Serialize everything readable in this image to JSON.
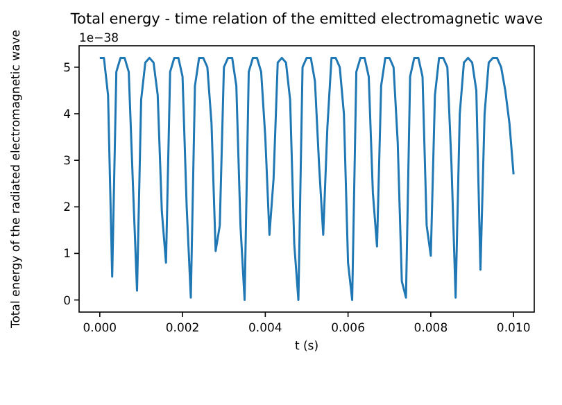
{
  "chart_data": {
    "type": "line",
    "title": "Total energy - time relation of the emitted electromagnetic wave",
    "xlabel": "t (s)",
    "ylabel": "Total energy of the radiated electromagnetic wave",
    "annotations": [
      "1e−38"
    ],
    "xlim": [
      -0.0005,
      0.0105
    ],
    "ylim": [
      -0.26,
      5.46
    ],
    "xticks": [
      {
        "value": 0,
        "label": "0.000"
      },
      {
        "value": 0.002,
        "label": "0.002"
      },
      {
        "value": 0.004,
        "label": "0.004"
      },
      {
        "value": 0.006,
        "label": "0.006"
      },
      {
        "value": 0.008,
        "label": "0.008"
      },
      {
        "value": 0.01,
        "label": "0.010"
      }
    ],
    "yticks": [
      0,
      1,
      2,
      3,
      4,
      5
    ],
    "series": [
      {
        "color": "#1f77b4",
        "x": [
          0,
          0.0001,
          0.0002,
          0.0003,
          0.0004,
          0.0005,
          0.0006,
          0.0007,
          0.0008,
          0.0009,
          0.001,
          0.0011,
          0.0012,
          0.0013,
          0.0014,
          0.0015,
          0.0016,
          0.0017,
          0.0018,
          0.0019,
          0.002,
          0.0021,
          0.0022,
          0.0023,
          0.0024,
          0.0025,
          0.0026,
          0.0027,
          0.0028,
          0.0029,
          0.003,
          0.0031,
          0.0032,
          0.0033,
          0.0034,
          0.0035,
          0.0036,
          0.0037,
          0.0038,
          0.0039,
          0.004,
          0.0041,
          0.0042,
          0.0043,
          0.0044,
          0.0045,
          0.0046,
          0.0047,
          0.0048,
          0.0049,
          0.005,
          0.0051,
          0.0052,
          0.0053,
          0.0054,
          0.0055,
          0.0056,
          0.0057,
          0.0058,
          0.0059,
          0.006,
          0.0061,
          0.0062,
          0.0063,
          0.0064,
          0.0065,
          0.0066,
          0.0067,
          0.0068,
          0.0069,
          0.007,
          0.0071,
          0.0072,
          0.0073,
          0.0074,
          0.0075,
          0.0076,
          0.0077,
          0.0078,
          0.0079,
          0.008,
          0.0081,
          0.0082,
          0.0083,
          0.0084,
          0.0085,
          0.0086,
          0.0087,
          0.0088,
          0.0089,
          0.009,
          0.0091,
          0.0092,
          0.0093,
          0.0094,
          0.0095,
          0.0096,
          0.0097,
          0.0098,
          0.0099,
          0.01
        ],
        "values": [
          5.2,
          5.2,
          4.4,
          0.5,
          4.9,
          5.2,
          5.2,
          4.9,
          2.5,
          0.2,
          4.3,
          5.1,
          5.2,
          5.1,
          4.4,
          1.9,
          0.8,
          4.9,
          5.2,
          5.2,
          4.8,
          2.0,
          0.05,
          4.6,
          5.2,
          5.2,
          5.0,
          3.8,
          1.05,
          1.6,
          5.0,
          5.2,
          5.2,
          4.6,
          1.6,
          0.0,
          4.9,
          5.2,
          5.2,
          4.9,
          3.5,
          1.4,
          2.6,
          5.1,
          5.2,
          5.1,
          4.3,
          1.2,
          0.0,
          5.0,
          5.2,
          5.2,
          4.7,
          2.9,
          1.4,
          3.7,
          5.2,
          5.2,
          5.0,
          4.0,
          0.8,
          0.0,
          4.9,
          5.2,
          5.2,
          4.8,
          2.3,
          1.15,
          4.6,
          5.2,
          5.2,
          5.0,
          3.4,
          0.4,
          0.05,
          4.8,
          5.2,
          5.2,
          4.8,
          1.6,
          0.95,
          4.4,
          5.2,
          5.2,
          5.0,
          2.9,
          0.05,
          4.0,
          5.1,
          5.2,
          5.1,
          4.5,
          0.65,
          4.0,
          5.1,
          5.2,
          5.2,
          5.0,
          4.5,
          3.8,
          2.7
        ]
      }
    ]
  }
}
